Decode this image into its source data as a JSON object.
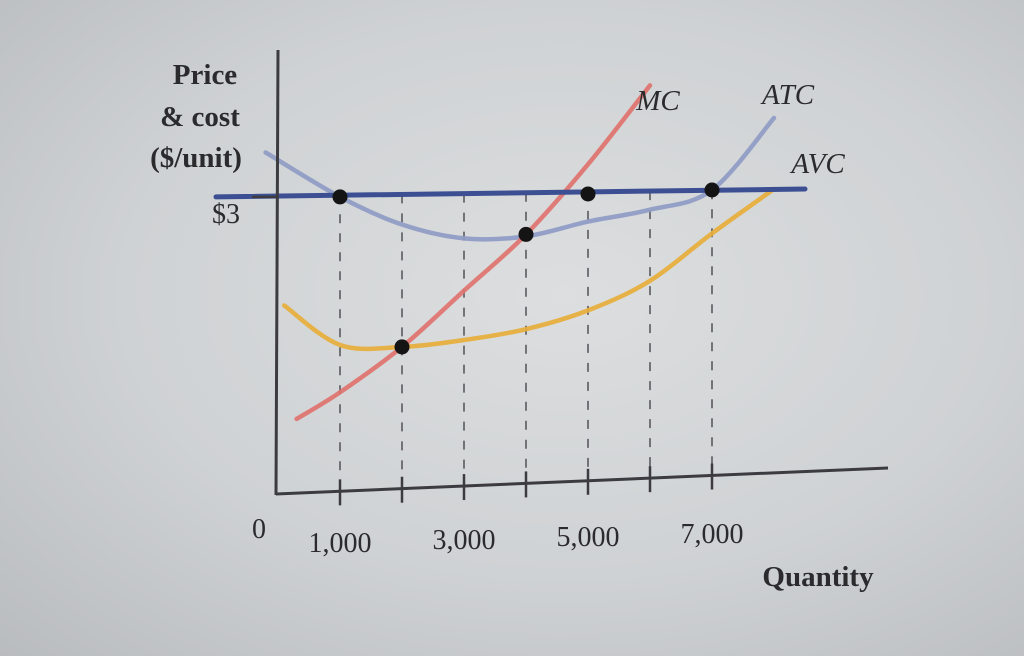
{
  "chart_data": {
    "type": "line",
    "title": "",
    "ylabel_lines": [
      "Price",
      "& cost",
      "($/unit)"
    ],
    "xlabel": "Quantity",
    "origin_label": "0",
    "price_label": "$3",
    "price_value": 3,
    "x_ticks": [
      1000,
      2000,
      3000,
      4000,
      5000,
      6000,
      7000
    ],
    "x_tick_labels": [
      {
        "value": 1000,
        "text": "1,000"
      },
      {
        "value": 3000,
        "text": "3,000"
      },
      {
        "value": 5000,
        "text": "5,000"
      },
      {
        "value": 7000,
        "text": "7,000"
      }
    ],
    "xlim": [
      -1000,
      9000
    ],
    "ylim": [
      0,
      4
    ],
    "grid": false,
    "series": [
      {
        "name": "MC",
        "color": "#e0736f",
        "x": [
          300,
          1000,
          2000,
          3000,
          4000,
          5000,
          6000
        ],
        "y": [
          0.75,
          1.02,
          1.48,
          2.05,
          2.62,
          3.33,
          4.13
        ]
      },
      {
        "name": "ATC",
        "color": "#8f9bc6",
        "x": [
          -200,
          1000,
          2000,
          3000,
          4000,
          5000,
          6000,
          7000,
          8000
        ],
        "y": [
          3.45,
          3.0,
          2.72,
          2.58,
          2.6,
          2.75,
          2.87,
          3.07,
          3.8
        ]
      },
      {
        "name": "AVC",
        "color": "#e7ae3a",
        "x": [
          100,
          1000,
          2000,
          3000,
          4000,
          5000,
          6000,
          7000,
          8000
        ],
        "y": [
          1.9,
          1.5,
          1.48,
          1.55,
          1.66,
          1.85,
          2.15,
          2.63,
          3.08
        ]
      },
      {
        "name": "Price",
        "color": "#3c4f93",
        "x": [
          -1000,
          8500
        ],
        "y": [
          3.0,
          3.08
        ]
      }
    ],
    "points": [
      {
        "x": 1000,
        "y": 3.0
      },
      {
        "x": 2000,
        "y": 1.48
      },
      {
        "x": 4000,
        "y": 2.62
      },
      {
        "x": 5000,
        "y": 3.03
      },
      {
        "x": 7000,
        "y": 3.07
      }
    ],
    "colors": {
      "axis": "#3c3c40",
      "dashed": "#5a5a5e",
      "point": "#141414"
    }
  }
}
